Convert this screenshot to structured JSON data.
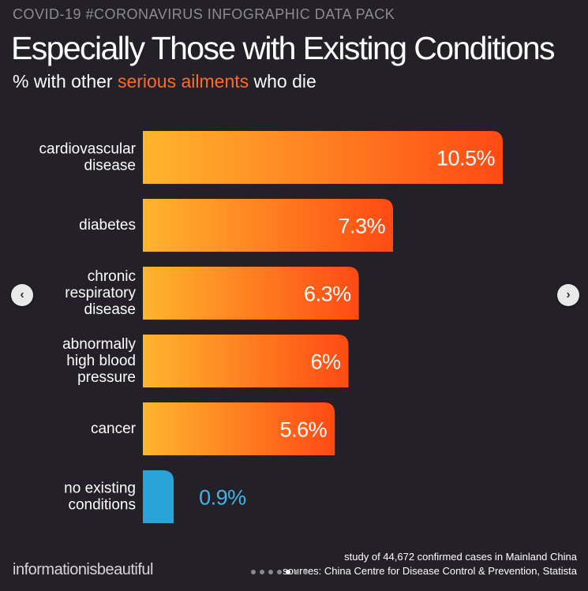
{
  "header": {
    "eyebrow": "COVID-19 #CORONAVIRUS INFOGRAPHIC DATA PACK",
    "title": "Especially Those with Existing Conditions",
    "subtitle_prefix": "% with other ",
    "subtitle_accent": "serious ailments",
    "subtitle_suffix": " who die"
  },
  "colors": {
    "background": "#232027",
    "accent": "#ff6a2a",
    "bar_gradient_start": "#ffb52e",
    "bar_gradient_end": "#ff4a14",
    "no_condition_bar": "#2aa3d8",
    "no_condition_text": "#3fb4e6"
  },
  "chart_data": {
    "type": "bar",
    "orientation": "horizontal",
    "categories": [
      [
        "cardiovascular",
        "disease"
      ],
      [
        "diabetes"
      ],
      [
        "chronic",
        "respiratory",
        "disease"
      ],
      [
        "abnormally",
        "high blood",
        "pressure"
      ],
      [
        "cancer"
      ],
      [
        "no existing",
        "conditions"
      ]
    ],
    "values": [
      10.5,
      7.3,
      6.3,
      6,
      5.6,
      0.9
    ],
    "value_labels": [
      "10.5%",
      "7.3%",
      "6.3%",
      "6%",
      "5.6%",
      "0.9%"
    ],
    "title": "Especially Those with Existing Conditions",
    "xlabel": "",
    "ylabel": "",
    "xlim": [
      0,
      10.5
    ],
    "grid": false,
    "legend": "none"
  },
  "navigation": {
    "prev_icon": "chevron-left-icon",
    "next_icon": "chevron-right-icon",
    "prev_glyph": "‹",
    "next_glyph": "›"
  },
  "footer": {
    "brand": "informationisbeautiful",
    "study_note": "study of 44,672 confirmed cases in Mainland China",
    "sources": "sources: China Centre for Disease Control & Prevention, Statista"
  }
}
